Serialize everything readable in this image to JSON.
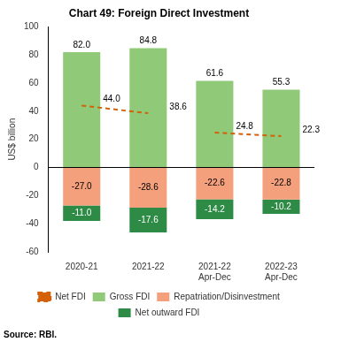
{
  "chart_data": {
    "type": "bar",
    "title": "Chart 49: Foreign Direct Investment",
    "ylabel": "US$ billion",
    "categories": [
      "2020-21",
      "2021-22",
      "2021-22\nApr-Dec",
      "2022-23\nApr-Dec"
    ],
    "stacked": true,
    "series": [
      {
        "name": "Gross FDI",
        "type": "bar",
        "color": "#90c978",
        "values": [
          82.0,
          84.8,
          61.6,
          55.3
        ],
        "value_labels": [
          "82.0",
          "84.8",
          "61.6",
          "55.3"
        ]
      },
      {
        "name": "Repatriation/Disinvestment",
        "type": "bar",
        "color": "#f4a07c",
        "values": [
          -27.0,
          -28.6,
          -22.6,
          -22.8
        ],
        "value_labels": [
          "-27.0",
          "-28.6",
          "-22.6",
          "-22.8"
        ]
      },
      {
        "name": "Net outward FDI",
        "type": "bar",
        "color": "#2e8b45",
        "values": [
          -11.0,
          -17.6,
          -14.2,
          -10.2
        ],
        "value_labels": [
          "-11.0",
          "-17.6",
          "-14.2",
          "-10.2"
        ]
      },
      {
        "name": "Net FDI",
        "type": "line",
        "color": "#d4600a",
        "line_style": "dashed",
        "values": [
          44.0,
          38.6,
          24.8,
          22.3
        ],
        "value_labels": [
          "44.0",
          "38.6",
          "24.8",
          "22.3"
        ]
      }
    ],
    "ylim": [
      -60,
      100
    ],
    "yticks": [
      -60,
      -40,
      -20,
      0,
      20,
      40,
      60,
      80,
      100
    ],
    "grid": false,
    "legend": "bottom",
    "data_labels": true,
    "annotations": [
      "Source: RBI."
    ]
  }
}
